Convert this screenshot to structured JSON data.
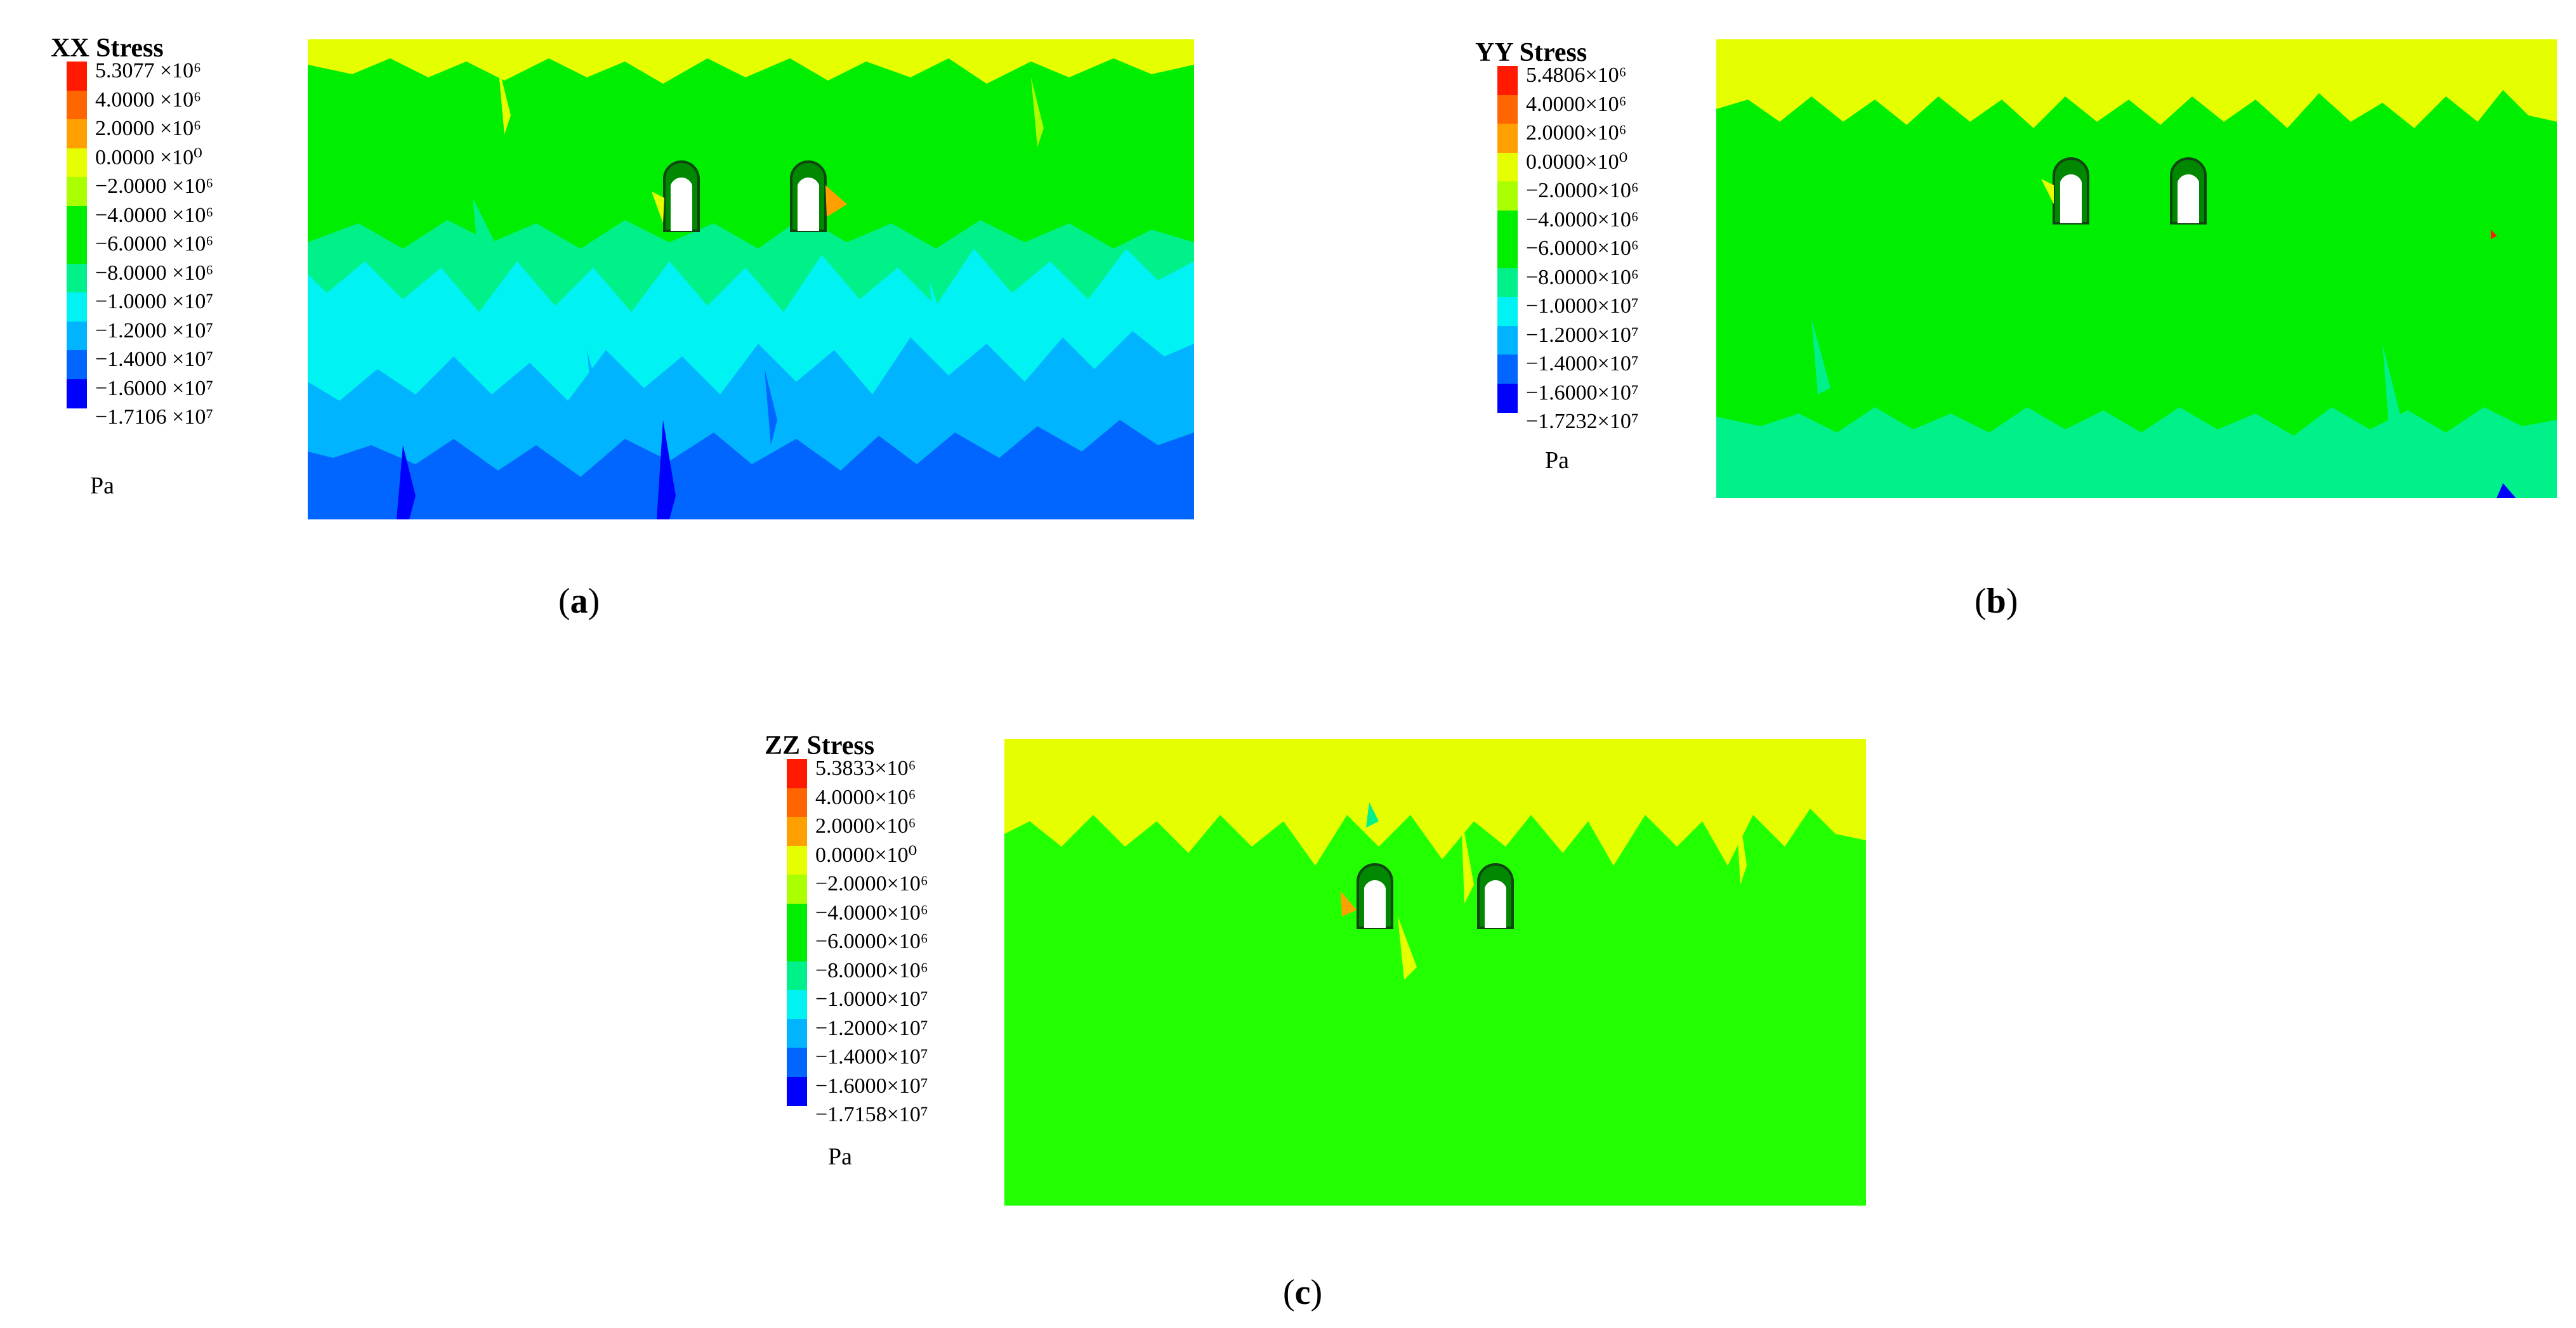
{
  "colors": {
    "red": "#ff1a00",
    "orange": "#ff6600",
    "amber": "#ffa000",
    "yellow": "#e6ff00",
    "yellowgreen": "#aaff00",
    "green": "#00ee00",
    "green_bright": "#22ff00",
    "seagreen": "#00f08a",
    "cyan": "#00f2f2",
    "skyblue": "#00b4ff",
    "blue": "#0066ff",
    "deepblue": "#0000ff"
  },
  "panels": [
    {
      "id": "a",
      "title": "XX Stress",
      "unit": "Pa",
      "caption_letter": "a",
      "legend": [
        "5.3077 ×10⁶",
        "4.0000 ×10⁶",
        "2.0000 ×10⁶",
        "0.0000 ×10⁰",
        "−2.0000 ×10⁶",
        "−4.0000 ×10⁶",
        "−6.0000 ×10⁶",
        "−8.0000 ×10⁶",
        "−1.0000 ×10⁷",
        "−1.2000 ×10⁷",
        "−1.4000 ×10⁷",
        "−1.6000 ×10⁷",
        "−1.7106 ×10⁷"
      ]
    },
    {
      "id": "b",
      "title": "YY Stress",
      "unit": "Pa",
      "caption_letter": "b",
      "legend": [
        "5.4806×10⁶",
        "4.0000×10⁶",
        "2.0000×10⁶",
        "0.0000×10⁰",
        "−2.0000×10⁶",
        "−4.0000×10⁶",
        "−6.0000×10⁶",
        "−8.0000×10⁶",
        "−1.0000×10⁷",
        "−1.2000×10⁷",
        "−1.4000×10⁷",
        "−1.6000×10⁷",
        "−1.7232×10⁷"
      ]
    },
    {
      "id": "c",
      "title": "ZZ Stress",
      "unit": "Pa",
      "caption_letter": "c",
      "legend": [
        "5.3833×10⁶",
        "4.0000×10⁶",
        "2.0000×10⁶",
        "0.0000×10⁰",
        "−2.0000×10⁶",
        "−4.0000×10⁶",
        "−6.0000×10⁶",
        "−8.0000×10⁶",
        "−1.0000×10⁷",
        "−1.2000×10⁷",
        "−1.4000×10⁷",
        "−1.6000×10⁷",
        "−1.7158×10⁷"
      ]
    }
  ]
}
